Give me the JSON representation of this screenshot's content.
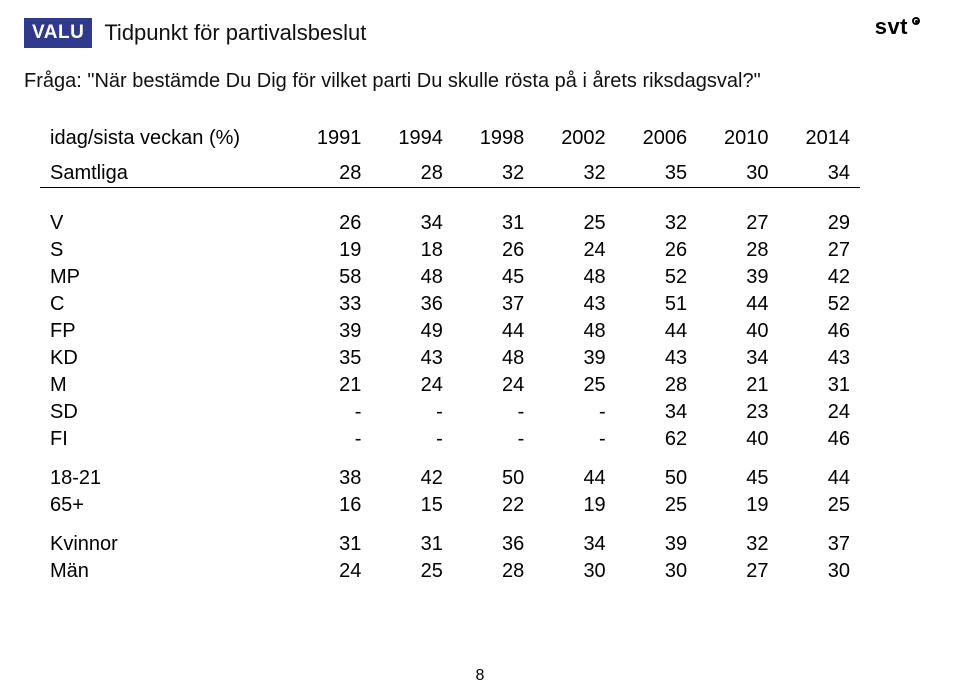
{
  "badge": "VALU",
  "title": "Tidpunkt för partivalsbeslut",
  "question": "Fråga: \"När bestämde Du Dig för vilket parti Du skulle rösta på i årets riksdagsval?\"",
  "logo_text": "svt",
  "page_number": "8",
  "table": {
    "header_label": "idag/sista veckan (%)",
    "years": [
      "1991",
      "1994",
      "1998",
      "2002",
      "2006",
      "2010",
      "2014"
    ],
    "sections": [
      [
        {
          "label": "Samtliga",
          "values": [
            "28",
            "28",
            "32",
            "32",
            "35",
            "30",
            "34"
          ]
        }
      ],
      [
        {
          "label": "V",
          "values": [
            "26",
            "34",
            "31",
            "25",
            "32",
            "27",
            "29"
          ]
        },
        {
          "label": "S",
          "values": [
            "19",
            "18",
            "26",
            "24",
            "26",
            "28",
            "27"
          ]
        },
        {
          "label": "MP",
          "values": [
            "58",
            "48",
            "45",
            "48",
            "52",
            "39",
            "42"
          ]
        },
        {
          "label": "C",
          "values": [
            "33",
            "36",
            "37",
            "43",
            "51",
            "44",
            "52"
          ]
        },
        {
          "label": "FP",
          "values": [
            "39",
            "49",
            "44",
            "48",
            "44",
            "40",
            "46"
          ]
        },
        {
          "label": "KD",
          "values": [
            "35",
            "43",
            "48",
            "39",
            "43",
            "34",
            "43"
          ]
        },
        {
          "label": "M",
          "values": [
            "21",
            "24",
            "24",
            "25",
            "28",
            "21",
            "31"
          ]
        },
        {
          "label": "SD",
          "values": [
            "-",
            "-",
            "-",
            "-",
            "34",
            "23",
            "24"
          ]
        },
        {
          "label": "FI",
          "values": [
            "-",
            "-",
            "-",
            "-",
            "62",
            "40",
            "46"
          ]
        }
      ],
      [
        {
          "label": "18-21",
          "values": [
            "38",
            "42",
            "50",
            "44",
            "50",
            "45",
            "44"
          ]
        },
        {
          "label": "65+",
          "values": [
            "16",
            "15",
            "22",
            "19",
            "25",
            "19",
            "25"
          ]
        }
      ],
      [
        {
          "label": "Kvinnor",
          "values": [
            "31",
            "31",
            "36",
            "34",
            "39",
            "32",
            "37"
          ]
        },
        {
          "label": "Män",
          "values": [
            "24",
            "25",
            "28",
            "30",
            "30",
            "27",
            "30"
          ]
        }
      ]
    ]
  }
}
